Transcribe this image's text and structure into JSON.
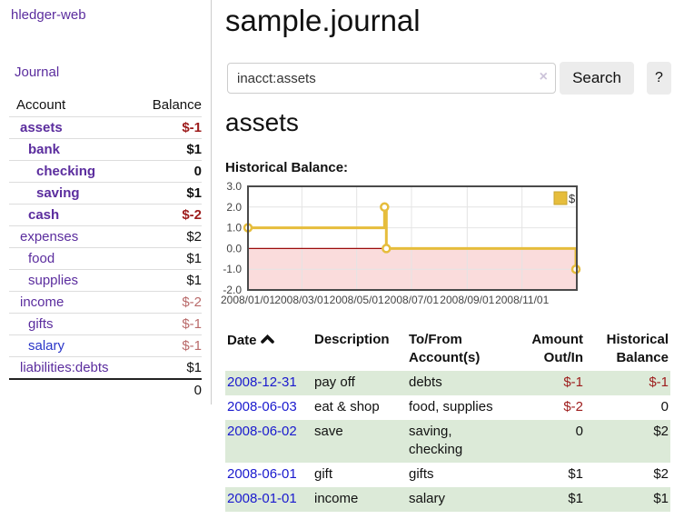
{
  "sidebar": {
    "brand": "hledger-web",
    "nav": {
      "journal": "Journal"
    },
    "accounts_table": {
      "headers": [
        "Account",
        "Balance"
      ],
      "rows": [
        {
          "name": "assets",
          "indent": 1,
          "bold": true,
          "balance": "$-1",
          "balance_style": "neg-strong"
        },
        {
          "name": "bank",
          "indent": 2,
          "bold": true,
          "balance": "$1",
          "balance_style": "pos"
        },
        {
          "name": "checking",
          "indent": 3,
          "bold": true,
          "balance": "0",
          "balance_style": "pos"
        },
        {
          "name": "saving",
          "indent": 3,
          "bold": true,
          "balance": "$1",
          "balance_style": "pos"
        },
        {
          "name": "cash",
          "indent": 2,
          "bold": true,
          "balance": "$-2",
          "balance_style": "neg-strong"
        },
        {
          "name": "expenses",
          "indent": 1,
          "bold": false,
          "balance": "$2",
          "balance_style": "pos"
        },
        {
          "name": "food",
          "indent": 2,
          "bold": false,
          "balance": "$1",
          "balance_style": "pos"
        },
        {
          "name": "supplies",
          "indent": 2,
          "bold": false,
          "balance": "$1",
          "balance_style": "pos"
        },
        {
          "name": "income",
          "indent": 1,
          "bold": false,
          "balance": "$-2",
          "balance_style": "neg-soft"
        },
        {
          "name": "gifts",
          "indent": 2,
          "bold": false,
          "balance": "$-1",
          "balance_style": "neg-soft"
        },
        {
          "name": "salary",
          "indent": 2,
          "bold": false,
          "balance": "$-1",
          "balance_style": "neg-soft",
          "link_color": "blue"
        },
        {
          "name": "liabilities:debts",
          "indent": 1,
          "bold": false,
          "balance": "$1",
          "balance_style": "pos"
        }
      ],
      "total": "0"
    }
  },
  "header": {
    "title": "sample.journal"
  },
  "search": {
    "value": "inacct:assets",
    "clear_icon": "×",
    "button": "Search",
    "help_button": "?"
  },
  "account_page": {
    "heading": "assets",
    "chart_label": "Historical Balance:"
  },
  "chart_data": {
    "type": "line",
    "step": true,
    "series": [
      {
        "name": "$",
        "color": "#e6bd3c",
        "points": [
          [
            "2008-01-01",
            1
          ],
          [
            "2008-06-01",
            2
          ],
          [
            "2008-06-03",
            0
          ],
          [
            "2008-12-31",
            -1
          ]
        ]
      }
    ],
    "x_range": [
      "2008-01-01",
      "2009-01-01"
    ],
    "ylim": [
      -2,
      3
    ],
    "x_ticks": [
      "2008/01/01",
      "2008/03/01",
      "2008/05/01",
      "2008/07/01",
      "2008/09/01",
      "2008/11/01"
    ],
    "y_ticks": [
      "3.0",
      "2.0",
      "1.0",
      "0.0",
      "-1.0",
      "-2.0"
    ],
    "legend": {
      "label": "$",
      "position": "top-right"
    },
    "colors": {
      "line": "#e6bd3c",
      "marker_fill": "#ffffff",
      "negative_region": "#fadcdc",
      "zero_line": "#9c0b0b",
      "grid": "#e4e4e4",
      "border": "#4a4a4a",
      "tick_text": "#444444"
    }
  },
  "register_table": {
    "headers": {
      "date": "Date",
      "description": "Description",
      "tofrom_line1": "To/From",
      "tofrom_line2": "Account(s)",
      "amount_line1": "Amount",
      "amount_line2": "Out/In",
      "balance_line1": "Historical",
      "balance_line2": "Balance"
    },
    "rows": [
      {
        "date": "2008-12-31",
        "description": "pay off",
        "accounts": "debts",
        "amount": "$-1",
        "amount_negative": true,
        "balance": "$-1",
        "balance_negative": true
      },
      {
        "date": "2008-06-03",
        "description": "eat & shop",
        "accounts": "food, supplies",
        "amount": "$-2",
        "amount_negative": true,
        "balance": "0",
        "balance_negative": false
      },
      {
        "date": "2008-06-02",
        "description": "save",
        "accounts": "saving, checking",
        "amount": "0",
        "amount_negative": false,
        "balance": "$2",
        "balance_negative": false
      },
      {
        "date": "2008-06-01",
        "description": "gift",
        "accounts": "gifts",
        "amount": "$1",
        "amount_negative": false,
        "balance": "$2",
        "balance_negative": false
      },
      {
        "date": "2008-01-01",
        "description": "income",
        "accounts": "salary",
        "amount": "$1",
        "amount_negative": false,
        "balance": "$1",
        "balance_negative": false
      }
    ]
  },
  "colors": {
    "accent_purple": "#5b2d9e",
    "link_blue": "#1a1ace",
    "negative_strong": "#9d1c1c",
    "negative_soft": "#b96a6a",
    "row_green": "#dcead8",
    "button_gray": "#ececec"
  }
}
